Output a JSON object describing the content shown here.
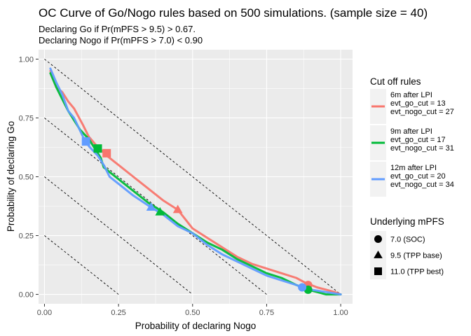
{
  "chart_data": {
    "type": "line",
    "title": "OC Curve of Go/Nogo rules based on 500 simulations. (sample size = 40)",
    "subtitle": [
      "Declaring Go if Pr(mPFS > 9.5) > 0.67.",
      "Declaring Nogo if Pr(mPFS > 7.0) < 0.90"
    ],
    "xlabel": "Probability of declaring Nogo",
    "ylabel": "Probability of declaring Go",
    "xlim": [
      -0.02,
      1.04
    ],
    "ylim": [
      -0.04,
      1.04
    ],
    "x_ticks": [
      0.0,
      0.25,
      0.5,
      0.75,
      1.0
    ],
    "x_tick_labels": [
      "0.00",
      "0.25",
      "0.50",
      "0.75",
      "1.00"
    ],
    "y_ticks": [
      0.0,
      0.25,
      0.5,
      0.75,
      1.0
    ],
    "y_tick_labels": [
      "0.00",
      "0.25",
      "0.50",
      "0.75",
      "1.00"
    ],
    "reference_lines_intercepts": [
      0.25,
      0.5,
      0.75,
      1.0
    ],
    "series": [
      {
        "name": "6m after LPI",
        "legend_label": [
          "6m after LPI",
          "evt_go_cut = 13",
          "evt_nogo_cut = 27"
        ],
        "color": "#F8766D",
        "x": [
          0.02,
          0.04,
          0.06,
          0.08,
          0.1,
          0.13,
          0.15,
          0.17,
          0.21,
          0.25,
          0.3,
          0.35,
          0.4,
          0.45,
          0.5,
          0.55,
          0.6,
          0.65,
          0.7,
          0.75,
          0.8,
          0.85,
          0.88,
          0.9,
          0.92,
          0.95,
          0.98,
          1.0
        ],
        "y": [
          0.95,
          0.88,
          0.86,
          0.82,
          0.79,
          0.72,
          0.67,
          0.64,
          0.59,
          0.55,
          0.5,
          0.45,
          0.4,
          0.36,
          0.28,
          0.24,
          0.2,
          0.16,
          0.13,
          0.11,
          0.09,
          0.07,
          0.05,
          0.04,
          0.03,
          0.02,
          0.01,
          0.0
        ]
      },
      {
        "name": "9m after LPI",
        "legend_label": [
          "9m after LPI",
          "evt_go_cut = 17",
          "evt_nogo_cut = 31"
        ],
        "color": "#00BA38",
        "x": [
          0.02,
          0.04,
          0.06,
          0.08,
          0.1,
          0.12,
          0.15,
          0.17,
          0.19,
          0.2,
          0.22,
          0.25,
          0.3,
          0.35,
          0.4,
          0.45,
          0.5,
          0.55,
          0.6,
          0.65,
          0.7,
          0.75,
          0.8,
          0.85,
          0.89,
          0.92,
          0.95,
          1.0
        ],
        "y": [
          0.94,
          0.88,
          0.83,
          0.78,
          0.74,
          0.7,
          0.66,
          0.62,
          0.58,
          0.54,
          0.52,
          0.49,
          0.44,
          0.39,
          0.35,
          0.3,
          0.26,
          0.22,
          0.19,
          0.15,
          0.12,
          0.09,
          0.07,
          0.04,
          0.02,
          0.01,
          0.0,
          0.0
        ]
      },
      {
        "name": "12m after LPI",
        "legend_label": [
          "12m after LPI",
          "evt_go_cut = 20",
          "evt_nogo_cut = 34"
        ],
        "color": "#619CFF",
        "x": [
          0.02,
          0.04,
          0.06,
          0.08,
          0.1,
          0.13,
          0.15,
          0.18,
          0.2,
          0.22,
          0.25,
          0.3,
          0.36,
          0.4,
          0.45,
          0.5,
          0.55,
          0.6,
          0.65,
          0.7,
          0.75,
          0.8,
          0.85,
          0.87,
          0.9,
          0.95,
          1.0
        ],
        "y": [
          0.96,
          0.9,
          0.85,
          0.78,
          0.75,
          0.67,
          0.63,
          0.59,
          0.55,
          0.5,
          0.47,
          0.42,
          0.37,
          0.34,
          0.29,
          0.26,
          0.21,
          0.17,
          0.14,
          0.11,
          0.08,
          0.06,
          0.04,
          0.03,
          0.02,
          0.01,
          0.0
        ]
      }
    ],
    "markers": [
      {
        "series": "6m after LPI",
        "shape": "circle",
        "x": 0.89,
        "y": 0.04
      },
      {
        "series": "6m after LPI",
        "shape": "triangle",
        "x": 0.45,
        "y": 0.36
      },
      {
        "series": "6m after LPI",
        "shape": "square",
        "x": 0.21,
        "y": 0.6
      },
      {
        "series": "9m after LPI",
        "shape": "circle",
        "x": 0.89,
        "y": 0.02
      },
      {
        "series": "9m after LPI",
        "shape": "triangle",
        "x": 0.39,
        "y": 0.35
      },
      {
        "series": "9m after LPI",
        "shape": "square",
        "x": 0.18,
        "y": 0.62
      },
      {
        "series": "12m after LPI",
        "shape": "circle",
        "x": 0.87,
        "y": 0.03
      },
      {
        "series": "12m after LPI",
        "shape": "triangle",
        "x": 0.36,
        "y": 0.37
      },
      {
        "series": "12m after LPI",
        "shape": "square",
        "x": 0.14,
        "y": 0.65
      }
    ],
    "legend_colour": {
      "title": "Cut off rules",
      "entries": [
        {
          "lines": [
            "6m after LPI",
            "evt_go_cut = 13",
            "evt_nogo_cut = 27"
          ],
          "color": "#F8766D"
        },
        {
          "lines": [
            "9m after LPI",
            "evt_go_cut = 17",
            "evt_nogo_cut = 31"
          ],
          "color": "#00BA38"
        },
        {
          "lines": [
            "12m after LPI",
            "evt_go_cut = 20",
            "evt_nogo_cut = 34"
          ],
          "color": "#619CFF"
        }
      ]
    },
    "legend_shape": {
      "title": "Underlying mPFS",
      "entries": [
        {
          "label": "7.0 (SOC)",
          "shape": "circle"
        },
        {
          "label": "9.5 (TPP base)",
          "shape": "triangle"
        },
        {
          "label": "11.0 (TPP best)",
          "shape": "square"
        }
      ]
    },
    "legend_position": "right",
    "grid": true,
    "panel_background": "#EBEBEB"
  }
}
